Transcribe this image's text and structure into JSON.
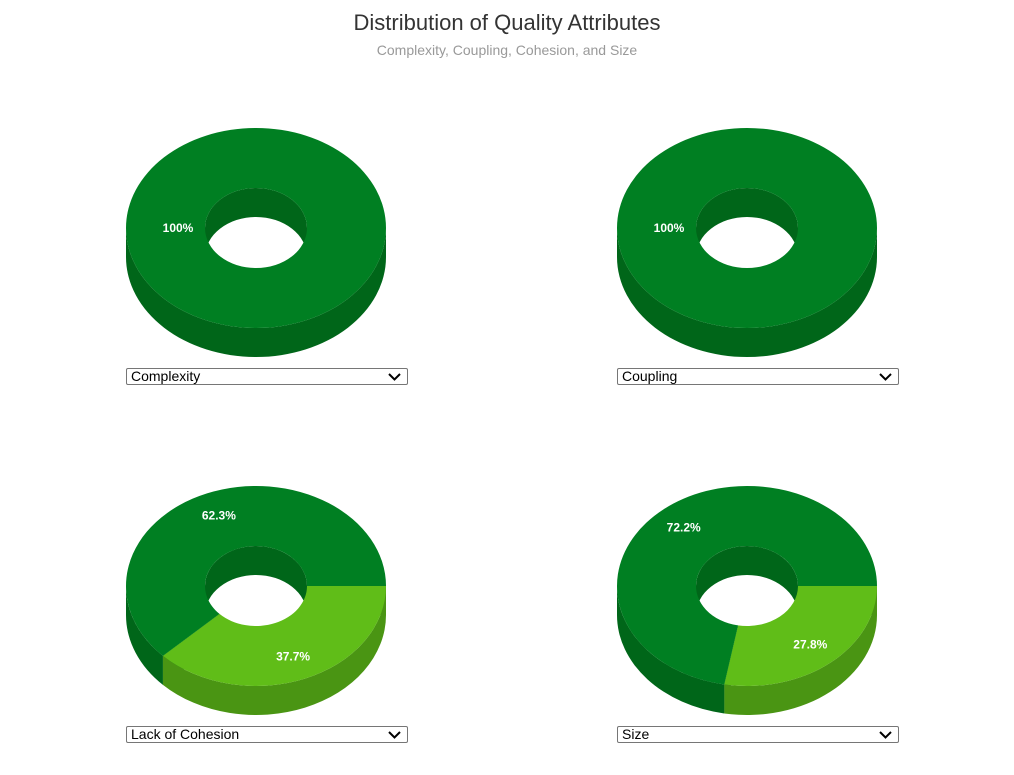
{
  "title": "Distribution of Quality Attributes",
  "subtitle": "Complexity, Coupling, Cohesion, and Size",
  "colors": {
    "main_top": "#007f22",
    "main_side": "#006619",
    "accent_top": "#60bd18",
    "accent_side": "#4a9513",
    "label": "#ffffff"
  },
  "chart_data": [
    {
      "type": "pie",
      "style": "3d-donut",
      "selector": "Complexity",
      "slices": [
        {
          "value": 100,
          "label": "100%",
          "color": "#007f22",
          "side_color": "#006619"
        }
      ]
    },
    {
      "type": "pie",
      "style": "3d-donut",
      "selector": "Coupling",
      "slices": [
        {
          "value": 100,
          "label": "100%",
          "color": "#007f22",
          "side_color": "#006619"
        }
      ]
    },
    {
      "type": "pie",
      "style": "3d-donut",
      "selector": "Lack of Cohesion",
      "slices": [
        {
          "value": 37.7,
          "label": "37.7%",
          "color": "#60bd18",
          "side_color": "#4a9513"
        },
        {
          "value": 62.3,
          "label": "62.3%",
          "color": "#007f22",
          "side_color": "#006619"
        }
      ]
    },
    {
      "type": "pie",
      "style": "3d-donut",
      "selector": "Size",
      "slices": [
        {
          "value": 27.8,
          "label": "27.8%",
          "color": "#60bd18",
          "side_color": "#4a9513"
        },
        {
          "value": 72.2,
          "label": "72.2%",
          "color": "#007f22",
          "side_color": "#006619"
        }
      ]
    }
  ]
}
